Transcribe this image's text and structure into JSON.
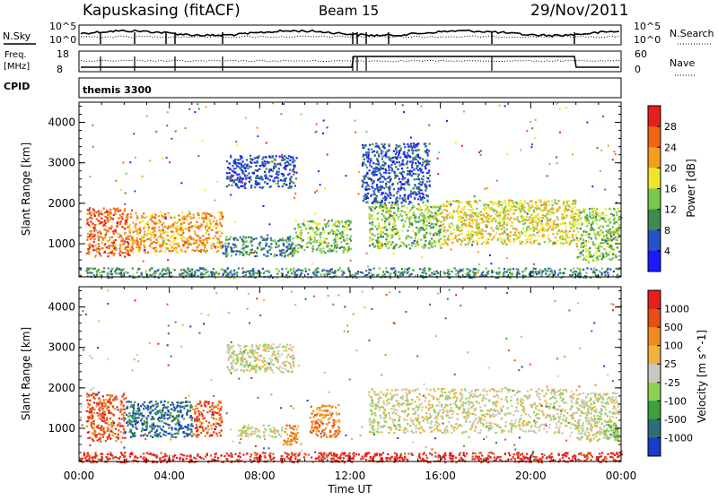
{
  "header": {
    "station": "Kapuskasing (fitACF)",
    "beam": "Beam 15",
    "date": "29/Nov/2011"
  },
  "summary_panels": {
    "nsky_label": "N.Sky",
    "nsearch_label": "N.Search",
    "freq_label": "Freq.",
    "freq_unit": "[MHz]",
    "nave_label": "Nave",
    "cpid_label": "CPID",
    "cpid_value": "themis 3300",
    "left_ticks_top": [
      "10^5",
      "10^0"
    ],
    "right_ticks_top": [
      "10^5",
      "10^0"
    ],
    "left_ticks_freq": [
      "18",
      "8"
    ],
    "right_ticks_nave": [
      "60",
      "0"
    ]
  },
  "chart_data": [
    {
      "type": "heatmap",
      "name": "Power",
      "ylabel": "Slant Range [km]",
      "ylim": [
        180,
        4500
      ],
      "yticks": [
        1000,
        2000,
        3000,
        4000
      ],
      "xlim": [
        0,
        24
      ],
      "colorbar": {
        "label": "Power [dB]",
        "ticks": [
          "4",
          "8",
          "12",
          "16",
          "20",
          "24",
          "28"
        ],
        "colors": [
          "#1a1aff",
          "#2850c8",
          "#3c8c50",
          "#78c850",
          "#f0e628",
          "#f0a01e",
          "#f06414",
          "#e61e1e"
        ]
      },
      "scatter_regions": [
        {
          "t0": 0.3,
          "t1": 2.2,
          "r0": 700,
          "r1": 1900,
          "level": 6
        },
        {
          "t0": 2.2,
          "t1": 6.3,
          "r0": 800,
          "r1": 1800,
          "level": 5
        },
        {
          "t0": 6.3,
          "t1": 9.5,
          "r0": 700,
          "r1": 1200,
          "level": 2
        },
        {
          "t0": 6.5,
          "t1": 9.6,
          "r0": 2400,
          "r1": 3200,
          "level": 1
        },
        {
          "t0": 9.5,
          "t1": 12.0,
          "r0": 800,
          "r1": 1600,
          "level": 3
        },
        {
          "t0": 12.8,
          "t1": 16.0,
          "r0": 900,
          "r1": 2000,
          "level": 3
        },
        {
          "t0": 16.0,
          "t1": 22.0,
          "r0": 1000,
          "r1": 2100,
          "level": 4
        },
        {
          "t0": 22.0,
          "t1": 23.9,
          "r0": 600,
          "r1": 1900,
          "level": 3
        },
        {
          "t0": 12.5,
          "t1": 15.5,
          "r0": 2000,
          "r1": 3500,
          "level": 1
        },
        {
          "t0": 0.0,
          "t1": 24.0,
          "r0": 180,
          "r1": 420,
          "level": 2
        }
      ]
    },
    {
      "type": "heatmap",
      "name": "Velocity",
      "ylabel": "Slant Range [km]",
      "xlabel": "Time UT",
      "ylim": [
        180,
        4500
      ],
      "yticks": [
        1000,
        2000,
        3000,
        4000
      ],
      "xlim": [
        0,
        24
      ],
      "xticks": [
        "00:00",
        "04:00",
        "08:00",
        "12:00",
        "16:00",
        "20:00",
        "00:00"
      ],
      "colorbar": {
        "label": "Velocity [m s^-1]",
        "ticks": [
          "1000",
          "500",
          "100",
          "25",
          "-25",
          "-100",
          "-500",
          "-1000"
        ],
        "colors": [
          "#1a3cc8",
          "#2d6e78",
          "#3ca03c",
          "#8cd250",
          "#c8c8c0",
          "#f0b43c",
          "#f08c1e",
          "#e65014",
          "#e61e1e"
        ]
      },
      "scatter_regions": [
        {
          "t0": 0.3,
          "t1": 2.0,
          "r0": 700,
          "r1": 1900,
          "level": 7
        },
        {
          "t0": 2.0,
          "t1": 5.0,
          "r0": 800,
          "r1": 1700,
          "level": 1
        },
        {
          "t0": 5.0,
          "t1": 6.3,
          "r0": 800,
          "r1": 1700,
          "level": 7
        },
        {
          "t0": 6.5,
          "t1": 9.5,
          "r0": 2400,
          "r1": 3100,
          "level": 4
        },
        {
          "t0": 7.0,
          "t1": 9.0,
          "r0": 800,
          "r1": 1100,
          "level": 4
        },
        {
          "t0": 9.0,
          "t1": 9.8,
          "r0": 600,
          "r1": 1100,
          "level": 6
        },
        {
          "t0": 10.2,
          "t1": 11.5,
          "r0": 800,
          "r1": 1600,
          "level": 6
        },
        {
          "t0": 12.8,
          "t1": 22.0,
          "r0": 900,
          "r1": 2000,
          "level": 4
        },
        {
          "t0": 22.0,
          "t1": 23.9,
          "r0": 700,
          "r1": 1900,
          "level": 4
        },
        {
          "t0": 23.2,
          "t1": 23.9,
          "r0": 700,
          "r1": 1100,
          "level": 3
        },
        {
          "t0": 0.0,
          "t1": 24.0,
          "r0": 180,
          "r1": 420,
          "level": 8
        }
      ]
    }
  ]
}
